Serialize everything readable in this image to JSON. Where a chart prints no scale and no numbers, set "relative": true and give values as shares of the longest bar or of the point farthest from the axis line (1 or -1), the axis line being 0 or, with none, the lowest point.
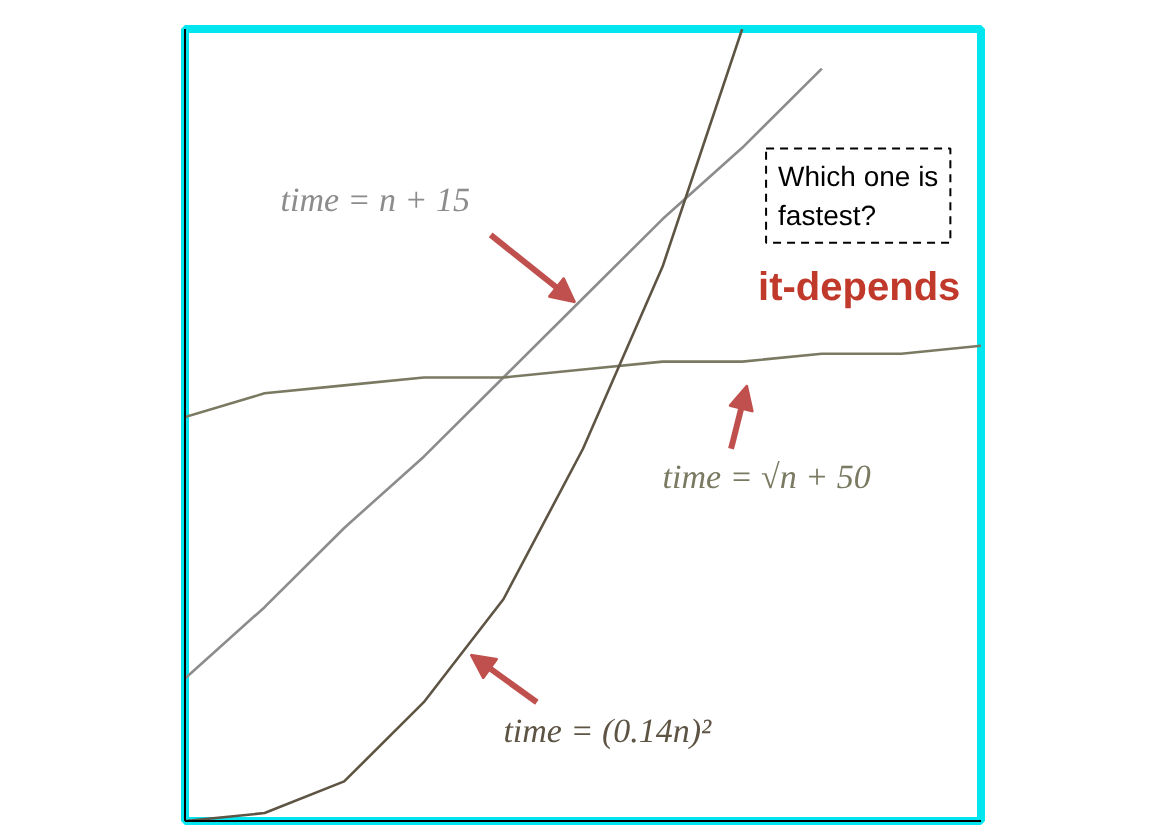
{
  "chart_data": {
    "type": "line",
    "relative": true,
    "categories": [
      null,
      null,
      null,
      null,
      null,
      null,
      null,
      null,
      null,
      null,
      null
    ],
    "series": [
      {
        "name": "time = n + 15",
        "color": "#8c8c8c",
        "values": [
          0.18,
          0.27,
          0.37,
          0.46,
          0.56,
          0.66,
          0.76,
          0.85,
          0.95,
          null,
          null
        ]
      },
      {
        "name": "time = √n + 50",
        "color": "#7a7a62",
        "values": [
          0.51,
          0.54,
          0.55,
          0.56,
          0.56,
          0.57,
          0.58,
          0.58,
          0.59,
          0.59,
          0.6
        ]
      },
      {
        "name": "time = (0.14n)²",
        "color": "#5e5444",
        "values": [
          0.0,
          0.01,
          0.05,
          0.15,
          0.28,
          0.47,
          0.7,
          1.0,
          null,
          null,
          null
        ]
      }
    ],
    "annotations": [
      "Which one is fastest?",
      "it-depends"
    ]
  }
}
